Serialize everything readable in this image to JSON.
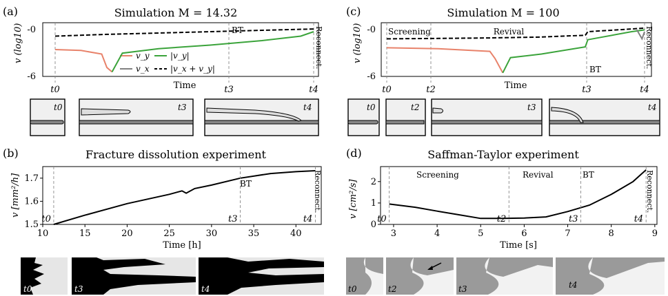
{
  "panels": {
    "a": {
      "label": "(a)",
      "title": "Simulation M = 14.32",
      "ylabel": "v (log10)",
      "xlabel": "Time",
      "ytick_top": "-0",
      "ytick_bottom": "-6",
      "bt": "BT",
      "reconnect": "Reconnect.",
      "legend": [
        "v_y",
        "|v_y|",
        "v_x",
        "|v_x + v_y|"
      ],
      "thumbs": [
        "t0",
        "t3",
        "t4"
      ]
    },
    "c": {
      "label": "(c)",
      "title": "Simulation M = 100",
      "ylabel": "v (log10)",
      "xlabel": "Time",
      "ytick_top": "-0",
      "ytick_bottom": "-6",
      "bt": "BT",
      "reconnect": "Reconnect.",
      "regions": [
        "Screening",
        "Revival"
      ],
      "thumbs": [
        "t0",
        "t2",
        "t3",
        "t4"
      ]
    },
    "b": {
      "label": "(b)",
      "title": "Fracture dissolution experiment",
      "ylabel": "v [mm²/h]",
      "xlabel": "Time [h]",
      "bt": "BT",
      "reconnect": "Reconnect.",
      "thumbs": [
        "t0",
        "t3",
        "t4"
      ]
    },
    "d": {
      "label": "(d)",
      "title": "Saffman-Taylor experiment",
      "ylabel": "v [cm²/s]",
      "xlabel": "Time [s]",
      "bt": "BT",
      "reconnect": "Reconnect.",
      "regions": [
        "Screening",
        "Revival"
      ],
      "thumbs": [
        "t0",
        "t2",
        "t3",
        "t4"
      ]
    }
  },
  "colors": {
    "vy": "#e8826a",
    "abs_vy": "#3aa33a",
    "vx": "#808080",
    "sum": "#000000"
  },
  "chart_data": [
    {
      "panel": "a",
      "type": "line",
      "title": "Simulation M = 14.32",
      "xlabel": "Time",
      "ylabel": "v (log10)",
      "ylim": [
        -6,
        0
      ],
      "x_markers": [
        {
          "label": "t0",
          "x": 0
        },
        {
          "label": "t3",
          "x": 0.64
        },
        {
          "label": "t4",
          "x": 1.0
        }
      ],
      "series": [
        {
          "name": "|v_x + v_y|",
          "style": "dashed",
          "x": [
            0,
            0.2,
            0.4,
            0.6,
            0.8,
            1.0
          ],
          "y": [
            -1.5,
            -1.3,
            -1.15,
            -1.0,
            -0.85,
            -0.7
          ]
        },
        {
          "name": "v_y",
          "x": [
            0,
            0.1,
            0.18,
            0.2,
            0.22
          ],
          "y": [
            -3.0,
            -3.1,
            -3.5,
            -5.0,
            -5.5
          ]
        },
        {
          "name": "|v_y|",
          "x": [
            0.22,
            0.26,
            0.4,
            0.6,
            0.8,
            0.95,
            1.0
          ],
          "y": [
            -5.5,
            -3.4,
            -2.9,
            -2.5,
            -2.0,
            -1.5,
            -1.0
          ]
        }
      ]
    },
    {
      "panel": "c",
      "type": "line",
      "title": "Simulation M = 100",
      "xlabel": "Time",
      "ylabel": "v (log10)",
      "ylim": [
        -6,
        0
      ],
      "x_markers": [
        {
          "label": "t0",
          "x": 0
        },
        {
          "label": "t2",
          "x": 0.17
        },
        {
          "label": "t3",
          "x": 0.77
        },
        {
          "label": "t4",
          "x": 1.0
        }
      ],
      "series": [
        {
          "name": "|v_x + v_y|",
          "style": "dashed",
          "x": [
            0,
            0.2,
            0.4,
            0.6,
            0.77,
            0.78,
            0.95,
            1.0
          ],
          "y": [
            -1.8,
            -1.75,
            -1.7,
            -1.6,
            -1.4,
            -1.0,
            -0.7,
            -0.6
          ]
        },
        {
          "name": "v_y",
          "x": [
            0,
            0.2,
            0.4,
            0.42,
            0.45
          ],
          "y": [
            -2.8,
            -2.9,
            -3.2,
            -4.0,
            -5.6
          ]
        },
        {
          "name": "|v_y|",
          "x": [
            0.45,
            0.48,
            0.6,
            0.77,
            0.78,
            0.95,
            1.0
          ],
          "y": [
            -5.6,
            -3.9,
            -3.5,
            -2.7,
            -1.9,
            -1.0,
            -0.8
          ]
        },
        {
          "name": "v_x",
          "x": [
            0.97,
            0.99,
            1.0
          ],
          "y": [
            -0.8,
            -1.8,
            -1.0
          ]
        }
      ]
    },
    {
      "panel": "b",
      "type": "line",
      "title": "Fracture dissolution experiment",
      "xlabel": "Time [h]",
      "ylabel": "v [mm²/h]",
      "xlim": [
        10,
        43
      ],
      "ylim": [
        1.5,
        1.75
      ],
      "xticks": [
        10,
        15,
        20,
        25,
        30,
        35,
        40
      ],
      "yticks": [
        1.5,
        1.6,
        1.7
      ],
      "x_markers": [
        {
          "label": "t0",
          "x": 11.3
        },
        {
          "label": "t3",
          "x": 33.4
        },
        {
          "label": "t4",
          "x": 42.3
        }
      ],
      "series": [
        {
          "name": "v",
          "x": [
            11.3,
            15,
            20,
            25,
            26.5,
            27,
            28,
            30,
            33.4,
            37,
            40,
            42.3
          ],
          "y": [
            1.5,
            1.54,
            1.59,
            1.63,
            1.645,
            1.635,
            1.655,
            1.67,
            1.7,
            1.72,
            1.728,
            1.732
          ]
        }
      ]
    },
    {
      "panel": "d",
      "type": "line",
      "title": "Saffman-Taylor experiment",
      "xlabel": "Time [s]",
      "ylabel": "v [cm²/s]",
      "xlim": [
        2.7,
        9.05
      ],
      "ylim": [
        0,
        2.7
      ],
      "xticks": [
        3,
        4,
        5,
        6,
        7,
        8,
        9
      ],
      "yticks": [
        0,
        1,
        2
      ],
      "x_markers": [
        {
          "label": "t0",
          "x": 2.9
        },
        {
          "label": "t2",
          "x": 5.65
        },
        {
          "label": "t3",
          "x": 7.3
        },
        {
          "label": "t4",
          "x": 8.8
        }
      ],
      "series": [
        {
          "name": "v",
          "x": [
            2.9,
            3.5,
            4,
            4.5,
            5,
            5.5,
            6,
            6.5,
            7,
            7.5,
            8,
            8.5,
            8.8
          ],
          "y": [
            0.95,
            0.8,
            0.62,
            0.45,
            0.28,
            0.28,
            0.3,
            0.35,
            0.6,
            0.9,
            1.4,
            2.0,
            2.55
          ]
        }
      ]
    }
  ]
}
